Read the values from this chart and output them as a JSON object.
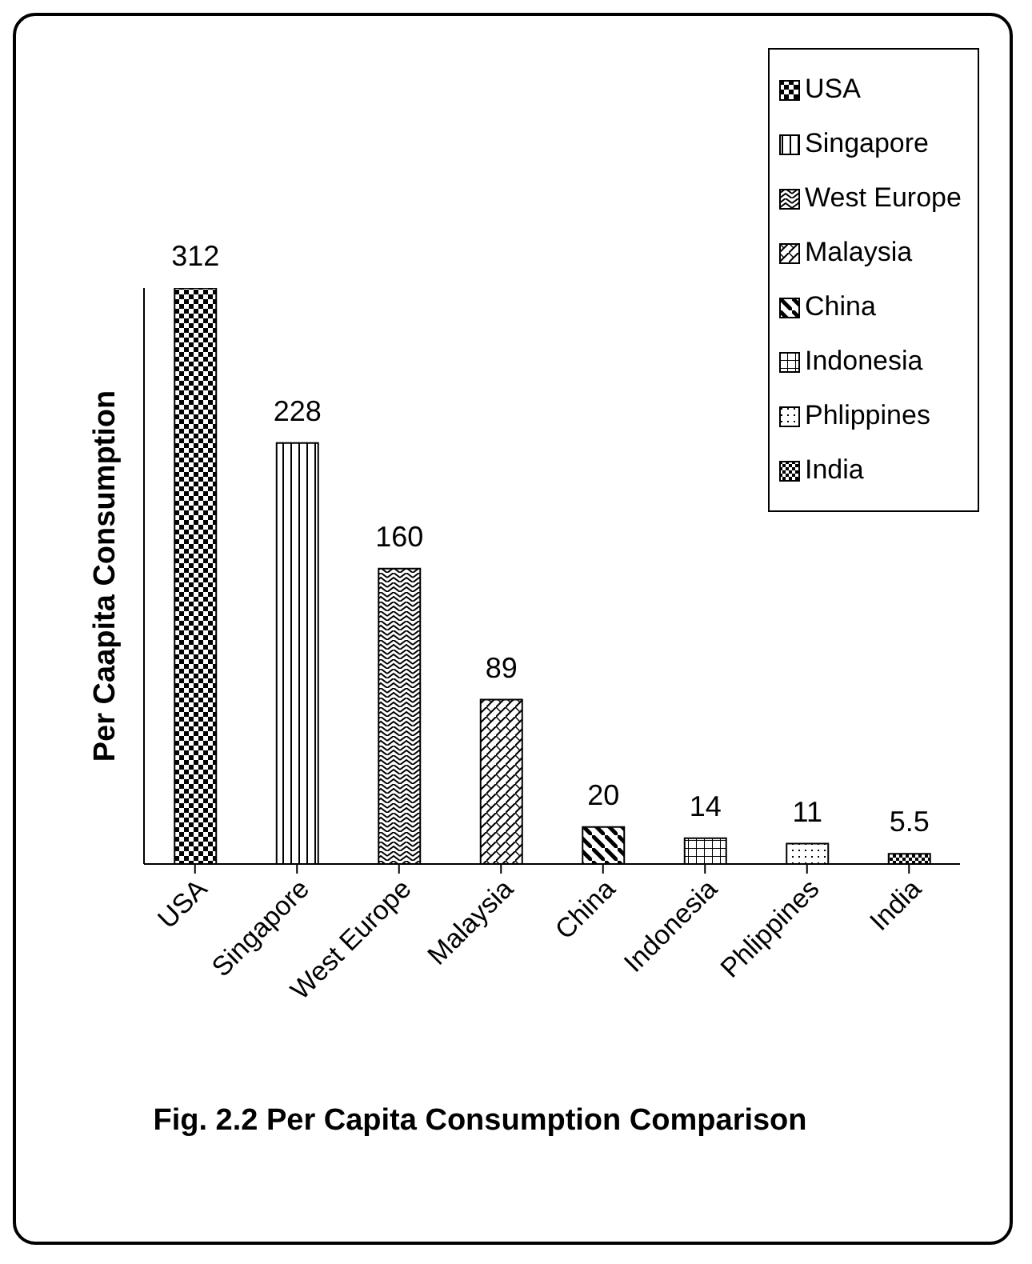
{
  "chart_data": {
    "type": "bar",
    "title": "Fig. 2.2 Per Capita Consumption Comparison",
    "ylabel": "Per Caapita Consumption",
    "categories": [
      "USA",
      "Singapore",
      "West Europe",
      "Malaysia",
      "China",
      "Indonesia",
      "Phlippines",
      "India"
    ],
    "series": [
      {
        "name": "USA",
        "color": "#000000",
        "values": [
          312,
          null,
          null,
          null,
          null,
          null,
          null,
          null
        ]
      },
      {
        "name": "Singapore",
        "color": "#000000",
        "values": [
          null,
          228,
          null,
          null,
          null,
          null,
          null,
          null
        ]
      },
      {
        "name": "West Europe",
        "color": "#000000",
        "values": [
          null,
          null,
          160,
          null,
          null,
          null,
          null,
          null
        ]
      },
      {
        "name": "Malaysia",
        "color": "#000000",
        "values": [
          null,
          null,
          null,
          89,
          null,
          null,
          null,
          null
        ]
      },
      {
        "name": "China",
        "color": "#000000",
        "values": [
          null,
          null,
          null,
          null,
          20,
          null,
          null,
          null
        ]
      },
      {
        "name": "Indonesia",
        "color": "#000000",
        "values": [
          null,
          null,
          null,
          null,
          null,
          14,
          null,
          null
        ]
      },
      {
        "name": "Phlippines",
        "color": "#000000",
        "values": [
          null,
          null,
          null,
          null,
          null,
          null,
          11,
          null
        ]
      },
      {
        "name": "India",
        "color": "#000000",
        "values": [
          null,
          null,
          null,
          null,
          null,
          null,
          null,
          5.5
        ]
      }
    ],
    "data_labels": true,
    "legend": "top right"
  }
}
